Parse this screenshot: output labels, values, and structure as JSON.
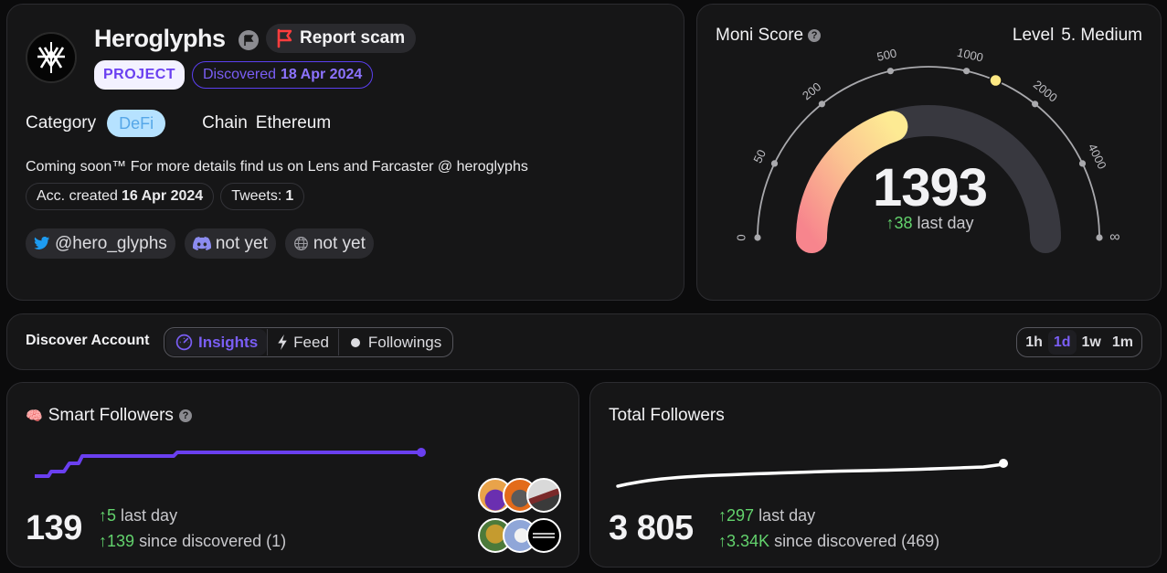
{
  "profile": {
    "name": "Heroglyphs",
    "report_label": "Report scam",
    "type_badge": "PROJECT",
    "discovered_label": "Discovered",
    "discovered_date": "18 Apr 2024",
    "category_label": "Category",
    "category_value": "DeFi",
    "chain_label": "Chain",
    "chain_value": "Ethereum",
    "bio": "Coming soon™ For more details find us on Lens and Farcaster @ heroglyphs",
    "acc_created_label": "Acc. created",
    "acc_created_date": "16 Apr 2024",
    "tweets_label": "Tweets:",
    "tweets_count": "1",
    "twitter_handle": "@hero_glyphs",
    "discord_label": "not yet",
    "website_label": "not yet",
    "colors": {
      "accent": "#6a3ff0",
      "defi": "#b6e2ff"
    }
  },
  "score": {
    "title": "Moni Score",
    "help": "?",
    "level_label": "Level",
    "level_value": "5. Medium",
    "value": "1393",
    "delta_value": "38",
    "delta_suffix": "last day",
    "scale_labels": [
      "0",
      "50",
      "200",
      "500",
      "1000",
      "2000",
      "4000",
      "∞"
    ],
    "gauge_fill_fraction": 0.4
  },
  "bar": {
    "title": "Discover Account",
    "tabs": [
      {
        "label": "Insights",
        "icon": "gauge-icon",
        "active": true
      },
      {
        "label": "Feed",
        "icon": "bolt-icon",
        "active": false
      },
      {
        "label": "Followings",
        "icon": "dot-icon",
        "active": false
      }
    ],
    "ranges": [
      {
        "label": "1h",
        "active": false
      },
      {
        "label": "1d",
        "active": true
      },
      {
        "label": "1w",
        "active": false
      },
      {
        "label": "1m",
        "active": false
      }
    ]
  },
  "smart": {
    "emoji": "🧠",
    "title": "Smart Followers",
    "help": "?",
    "value": "139",
    "delta_day": "5",
    "delta_day_suffix": "last day",
    "delta_disc": "139",
    "delta_disc_suffix": "since discovered (1)",
    "line_color": "#6a3ff0"
  },
  "total": {
    "title": "Total Followers",
    "value": "3 805",
    "delta_day": "297",
    "delta_day_suffix": "last day",
    "delta_disc": "3.34K",
    "delta_disc_suffix": "since discovered (469)",
    "line_color": "#ffffff"
  }
}
